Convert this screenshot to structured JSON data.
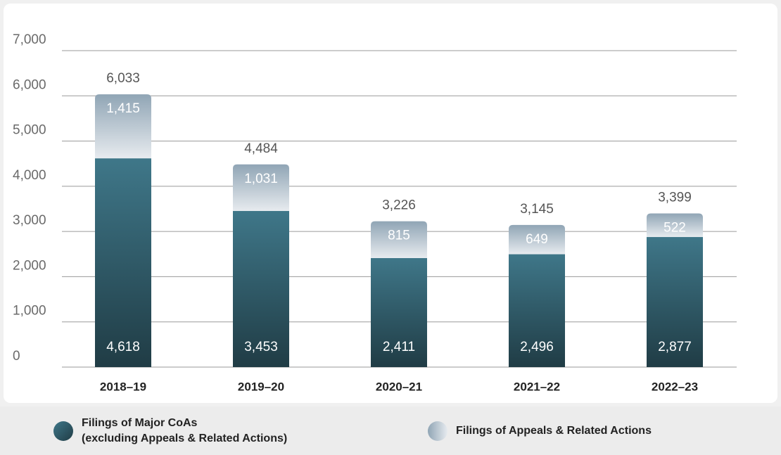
{
  "chart_data": {
    "type": "stacked-bar",
    "categories": [
      "2018–19",
      "2019–20",
      "2020–21",
      "2021–22",
      "2022–23"
    ],
    "series": [
      {
        "name": "Filings of Major CoAs\n(excluding Appeals & Related Actions)",
        "color": "#3f7789",
        "values": [
          4618,
          3453,
          2411,
          2496,
          2877
        ],
        "value_labels": [
          "4,618",
          "3,453",
          "2,411",
          "2,496",
          "2,877"
        ]
      },
      {
        "name": "Filings of Appeals & Related Actions",
        "color": "#90a5b5",
        "values": [
          1415,
          1031,
          815,
          649,
          522
        ],
        "value_labels": [
          "1,415",
          "1,031",
          "815",
          "649",
          "522"
        ]
      }
    ],
    "totals": {
      "values": [
        6033,
        4484,
        3226,
        3145,
        3399
      ],
      "value_labels": [
        "6,033",
        "4,484",
        "3,226",
        "3,145",
        "3,399"
      ]
    },
    "ylim": [
      0,
      7000
    ],
    "yticks": [
      0,
      {
        "value": 1000,
        "label": "1,000"
      },
      {
        "value": 2000,
        "label": "2,000"
      },
      {
        "value": 3000,
        "label": "3,000"
      },
      {
        "value": 4000,
        "label": "4,000"
      },
      {
        "value": 5000,
        "label": "5,000"
      },
      {
        "value": 6000,
        "label": "6,000"
      },
      {
        "value": 7000,
        "label": "7,000"
      }
    ],
    "grid": true
  }
}
